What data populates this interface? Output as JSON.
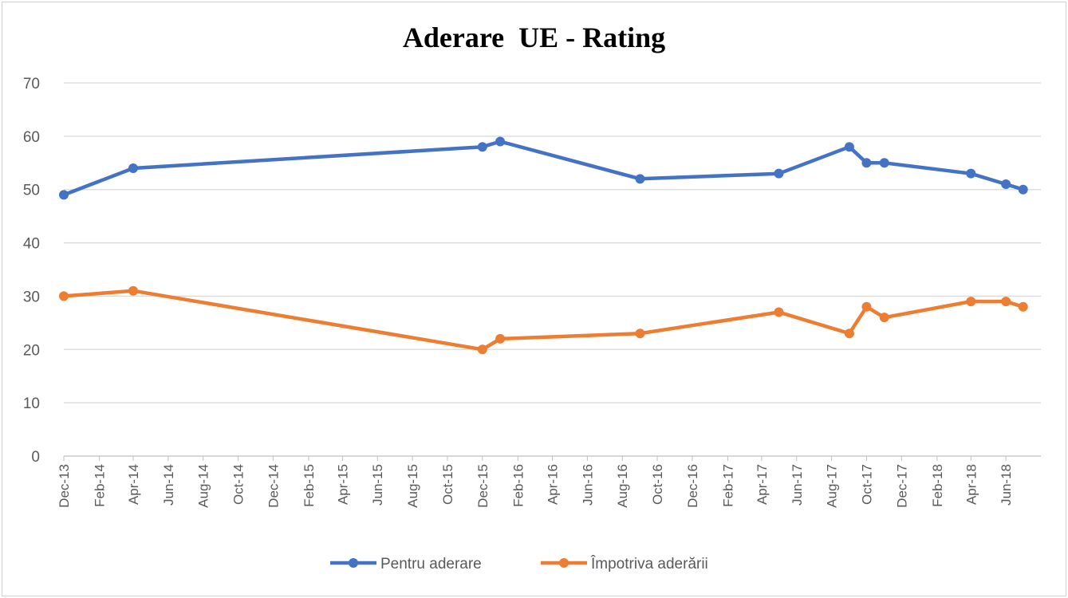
{
  "chart_data": {
    "type": "line",
    "title": "Aderare  UE - Rating",
    "xlabel": "",
    "ylabel": "",
    "ylim": [
      0,
      70
    ],
    "yticks": [
      0,
      10,
      20,
      30,
      40,
      50,
      60,
      70
    ],
    "xlim": [
      "2013-12-01",
      "2018-08-01"
    ],
    "xtick_labels": [
      "Dec-13",
      "Feb-14",
      "Apr-14",
      "Jun-14",
      "Aug-14",
      "Oct-14",
      "Dec-14",
      "Feb-15",
      "Apr-15",
      "Jun-15",
      "Aug-15",
      "Oct-15",
      "Dec-15",
      "Feb-16",
      "Apr-16",
      "Jun-16",
      "Aug-16",
      "Oct-16",
      "Dec-16",
      "Feb-17",
      "Apr-17",
      "Jun-17",
      "Aug-17",
      "Oct-17",
      "Dec-17",
      "Feb-18",
      "Apr-18",
      "Jun-18"
    ],
    "grid": true,
    "legend_position": "bottom",
    "series": [
      {
        "name": "Pentru aderare",
        "color": "#4472C4",
        "x": [
          "2013-12-01",
          "2014-04-01",
          "2015-12-01",
          "2016-01-01",
          "2016-09-01",
          "2017-05-01",
          "2017-09-01",
          "2017-10-01",
          "2017-11-01",
          "2018-04-01",
          "2018-06-01",
          "2018-07-01"
        ],
        "values": [
          49,
          54,
          58,
          59,
          52,
          53,
          58,
          55,
          55,
          53,
          51,
          50
        ]
      },
      {
        "name": "Împotriva aderării",
        "color": "#ED7D31",
        "x": [
          "2013-12-01",
          "2014-04-01",
          "2015-12-01",
          "2016-01-01",
          "2016-09-01",
          "2017-05-01",
          "2017-09-01",
          "2017-10-01",
          "2017-11-01",
          "2018-04-01",
          "2018-06-01",
          "2018-07-01"
        ],
        "values": [
          30,
          31,
          20,
          22,
          23,
          27,
          23,
          28,
          26,
          29,
          29,
          28
        ]
      }
    ]
  }
}
